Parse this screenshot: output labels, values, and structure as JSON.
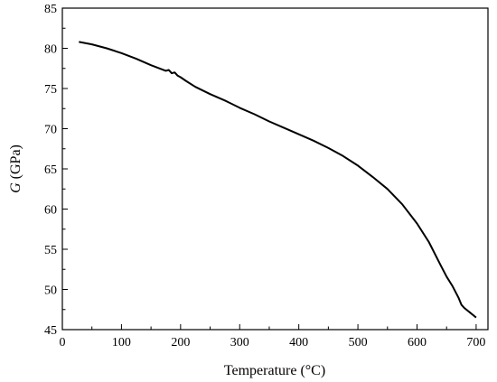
{
  "chart_data": {
    "type": "line",
    "xlabel": "Temperature (°C)",
    "ylabel_symbol": "G",
    "ylabel_unit": " (GPa)",
    "xlim": [
      0,
      720
    ],
    "ylim": [
      45,
      85
    ],
    "x_ticks": [
      0,
      100,
      200,
      300,
      400,
      500,
      600,
      700
    ],
    "y_ticks": [
      45,
      50,
      55,
      60,
      65,
      70,
      75,
      80,
      85
    ],
    "grid": false,
    "series": [
      {
        "x": [
          28,
          50,
          75,
          100,
          125,
          150,
          175,
          180,
          185,
          190,
          195,
          200,
          210,
          225,
          250,
          275,
          300,
          325,
          350,
          375,
          400,
          425,
          450,
          475,
          500,
          525,
          550,
          575,
          600,
          620,
          640,
          650,
          660,
          670,
          675,
          680,
          690,
          700
        ],
        "y": [
          80.8,
          80.5,
          80.0,
          79.4,
          78.7,
          77.9,
          77.2,
          77.3,
          76.9,
          77.0,
          76.6,
          76.4,
          75.9,
          75.2,
          74.3,
          73.5,
          72.6,
          71.8,
          70.9,
          70.1,
          69.3,
          68.5,
          67.6,
          66.6,
          65.4,
          64.0,
          62.5,
          60.6,
          58.2,
          55.9,
          53.0,
          51.6,
          50.4,
          49.0,
          48.1,
          47.7,
          47.1,
          46.5
        ]
      }
    ]
  }
}
